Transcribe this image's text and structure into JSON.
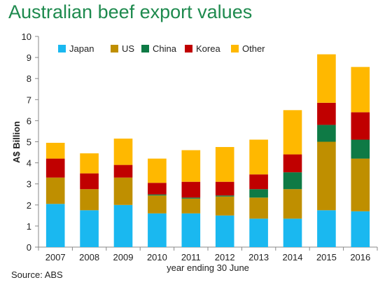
{
  "header": {
    "title": "Australian beef export values"
  },
  "footer": {
    "source": "Source: ABS"
  },
  "chart_data": {
    "type": "bar",
    "stacked": true,
    "title": "Australian beef export values",
    "xlabel": "year ending 30 June",
    "ylabel": "A$ Billion",
    "ylim": [
      0,
      10
    ],
    "yticks": [
      "0",
      "1",
      "2",
      "3",
      "4",
      "5",
      "6",
      "7",
      "8",
      "9",
      "10"
    ],
    "grid": false,
    "legend_position": "top-left",
    "categories": [
      "2007",
      "2008",
      "2009",
      "2010",
      "2011",
      "2012",
      "2013",
      "2014",
      "2015",
      "2016"
    ],
    "series": [
      {
        "name": "Japan",
        "color": "#1ab8f0",
        "values": [
          2.05,
          1.75,
          2.0,
          1.6,
          1.6,
          1.5,
          1.35,
          1.35,
          1.75,
          1.7
        ]
      },
      {
        "name": "US",
        "color": "#bf8f00",
        "values": [
          1.25,
          1.0,
          1.3,
          0.85,
          0.7,
          0.9,
          1.0,
          1.4,
          3.25,
          2.5
        ]
      },
      {
        "name": "China",
        "color": "#0e7a45",
        "values": [
          0.0,
          0.0,
          0.0,
          0.05,
          0.05,
          0.05,
          0.4,
          0.8,
          0.8,
          0.9
        ]
      },
      {
        "name": "Korea",
        "color": "#c00000",
        "values": [
          0.9,
          0.75,
          0.6,
          0.55,
          0.75,
          0.65,
          0.7,
          0.85,
          1.05,
          1.3
        ]
      },
      {
        "name": "Other",
        "color": "#ffb800",
        "values": [
          0.75,
          0.95,
          1.25,
          1.15,
          1.5,
          1.65,
          1.65,
          2.1,
          2.3,
          2.15
        ]
      }
    ]
  }
}
